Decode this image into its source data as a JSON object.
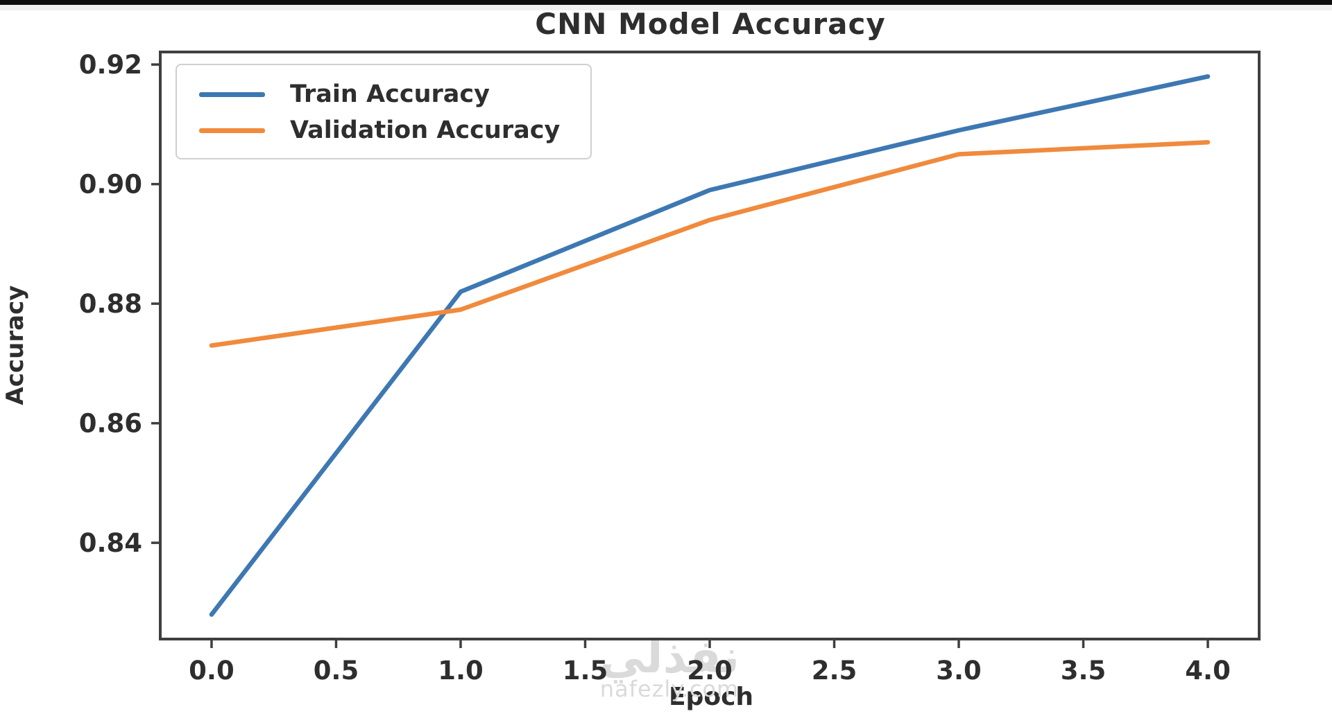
{
  "title": "CNN Model Accuracy",
  "watermark": {
    "arabic": "نفذلي",
    "site": "nafezly.com"
  },
  "colors": {
    "train": "#3d78b2",
    "validation": "#f08a3c",
    "text": "#2e2e2e",
    "spine": "#3f3f3f",
    "watermark": "#dadada",
    "legend_border": "#cfcfcf"
  },
  "legend": {
    "position": "upper-left",
    "entries": [
      {
        "label": "Train Accuracy",
        "color": "#3d78b2"
      },
      {
        "label": "Validation Accuracy",
        "color": "#f08a3c"
      }
    ]
  },
  "chart_data": {
    "type": "line",
    "title": "CNN Model Accuracy",
    "xlabel": "Epoch",
    "ylabel": "Accuracy",
    "x": [
      0,
      1,
      2,
      3,
      4
    ],
    "series": [
      {
        "name": "Train Accuracy",
        "color": "#3d78b2",
        "values": [
          0.828,
          0.882,
          0.899,
          0.909,
          0.918
        ]
      },
      {
        "name": "Validation Accuracy",
        "color": "#f08a3c",
        "values": [
          0.873,
          0.879,
          0.894,
          0.905,
          0.907
        ]
      }
    ],
    "xlim": [
      -0.206,
      4.206
    ],
    "ylim": [
      0.8239,
      0.9221
    ],
    "x_ticks": {
      "values": [
        0.0,
        0.5,
        1.0,
        1.5,
        2.0,
        2.5,
        3.0,
        3.5,
        4.0
      ],
      "labels": [
        "0.0",
        "0.5",
        "1.0",
        "1.5",
        "2.0",
        "2.5",
        "3.0",
        "3.5",
        "4.0"
      ]
    },
    "y_ticks": {
      "values": [
        0.84,
        0.86,
        0.88,
        0.9,
        0.92
      ],
      "labels": [
        "0.84",
        "0.86",
        "0.88",
        "0.90",
        "0.92"
      ]
    },
    "grid": false,
    "legend_position": "upper left"
  }
}
